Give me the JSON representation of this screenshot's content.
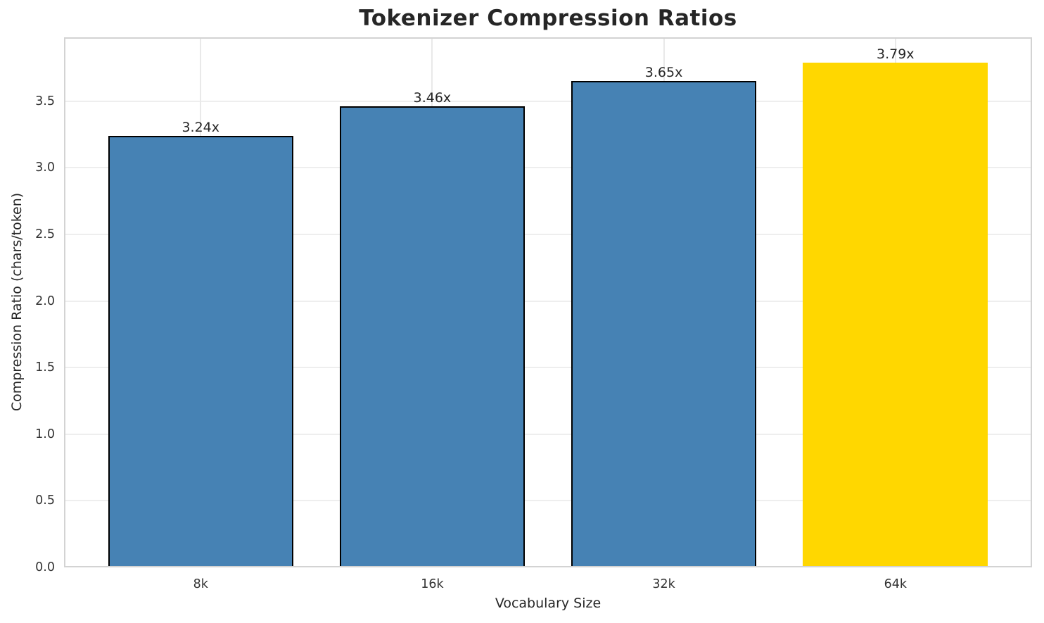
{
  "chart_data": {
    "type": "bar",
    "title": "Tokenizer Compression Ratios",
    "xlabel": "Vocabulary Size",
    "ylabel": "Compression Ratio (chars/token)",
    "categories": [
      "8k",
      "16k",
      "32k",
      "64k"
    ],
    "values": [
      3.24,
      3.46,
      3.65,
      3.79
    ],
    "bar_labels": [
      "3.24x",
      "3.46x",
      "3.65x",
      "3.79x"
    ],
    "bar_colors": [
      "#4682b4",
      "#4682b4",
      "#4682b4",
      "#ffd700"
    ],
    "bar_edge_colors": [
      "#000000",
      "#000000",
      "#000000",
      "none"
    ],
    "highlight_color": "#ffd700",
    "base_color": "#4682b4",
    "ylim": [
      0,
      3.98
    ],
    "xlim": [
      -0.59,
      3.59
    ],
    "bar_width": 0.8,
    "yticks": [
      0.0,
      0.5,
      1.0,
      1.5,
      2.0,
      2.5,
      3.0,
      3.5
    ],
    "ytick_labels": [
      "0.0",
      "0.5",
      "1.0",
      "1.5",
      "2.0",
      "2.5",
      "3.0",
      "3.5"
    ],
    "grid": true,
    "legend": "none",
    "colors": {
      "grid": "#e9e9e9",
      "spine": "#d3d3d3",
      "text": "#262626",
      "background": "#ffffff"
    }
  }
}
